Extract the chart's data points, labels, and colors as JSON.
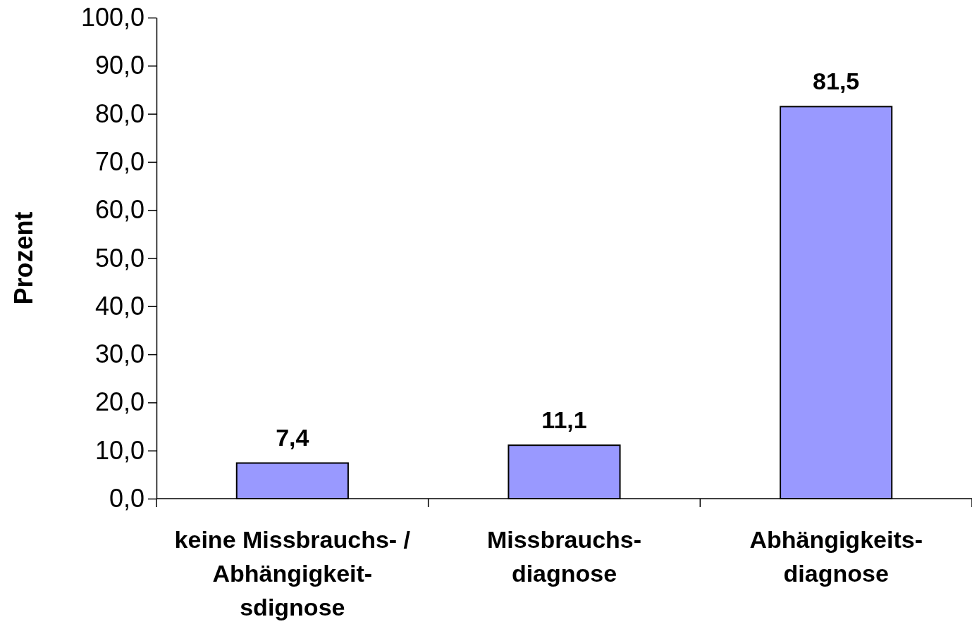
{
  "chart_data": {
    "type": "bar",
    "ylabel": "Prozent",
    "categories": [
      "keine Missbrauchs- /\nAbhängigkeit-\nsdignose",
      "Missbrauchs-\ndiagnose",
      "Abhängigkeits-\ndiagnose"
    ],
    "values": [
      7.4,
      11.1,
      81.5
    ],
    "color": "#9999ff",
    "value_labels": [
      "7,4",
      "11,1",
      "81,5"
    ],
    "ylim": [
      0,
      100
    ],
    "yticks": [
      {
        "value": 0,
        "label": "0,0"
      },
      {
        "value": 10,
        "label": "10,0"
      },
      {
        "value": 20,
        "label": "20,0"
      },
      {
        "value": 30,
        "label": "30,0"
      },
      {
        "value": 40,
        "label": "40,0"
      },
      {
        "value": 50,
        "label": "50,0"
      },
      {
        "value": 60,
        "label": "60,0"
      },
      {
        "value": 70,
        "label": "70,0"
      },
      {
        "value": 80,
        "label": "80,0"
      },
      {
        "value": 90,
        "label": "90,0"
      },
      {
        "value": 100,
        "label": "100,0"
      }
    ],
    "grid": false
  }
}
